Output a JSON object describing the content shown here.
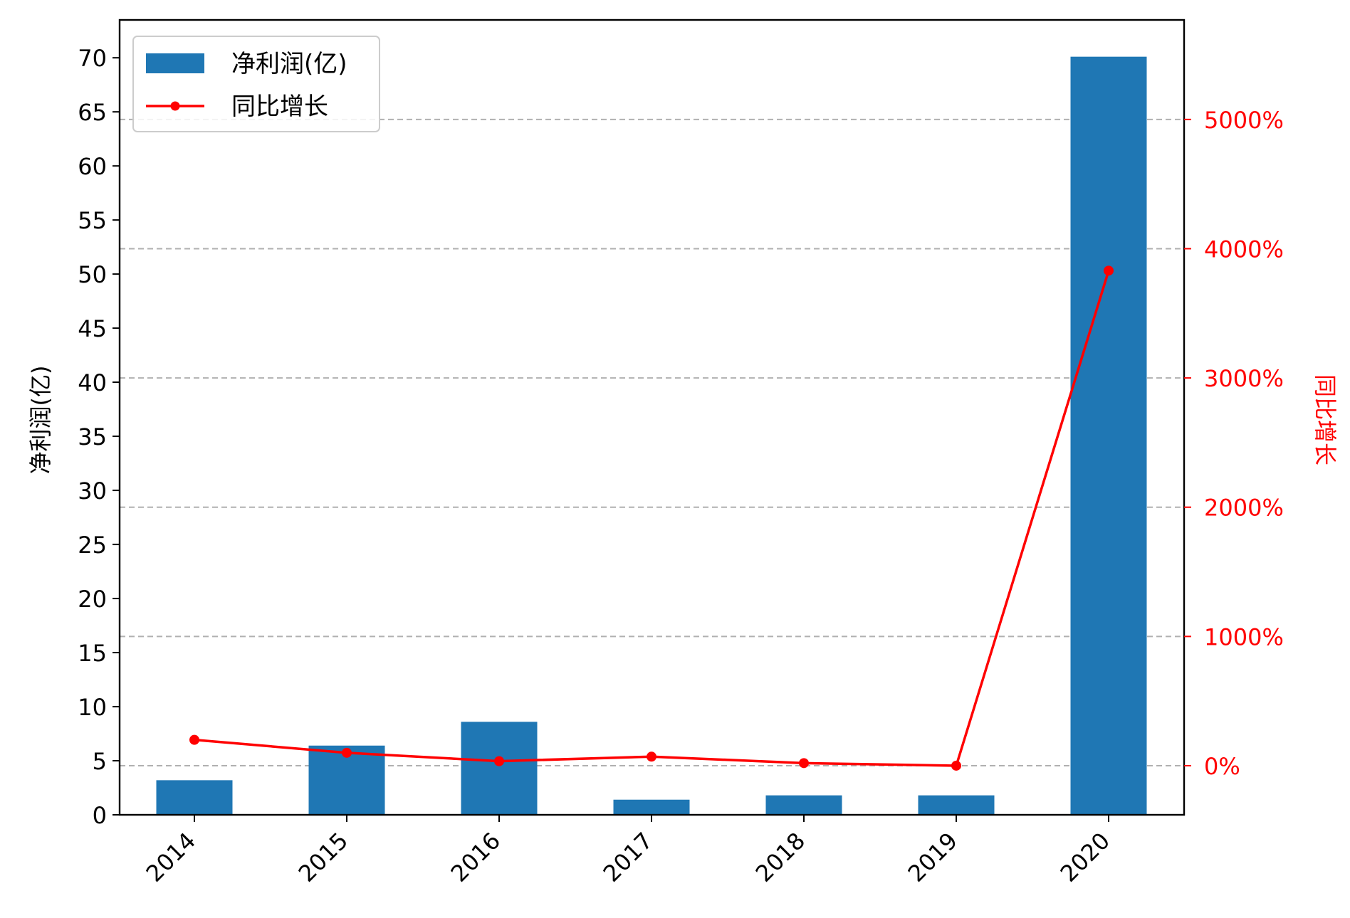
{
  "chart_data": {
    "type": "bar",
    "categories": [
      "2014",
      "2015",
      "2016",
      "2017",
      "2018",
      "2019",
      "2020"
    ],
    "series": [
      {
        "name": "净利润(亿)",
        "type": "bar",
        "axis": "left",
        "color": "#1f77b4",
        "values": [
          3.2,
          6.4,
          8.6,
          1.4,
          1.8,
          1.8,
          70.1
        ]
      },
      {
        "name": "同比增长",
        "type": "line",
        "axis": "right",
        "color": "#ff0000",
        "unit": "%",
        "values": [
          200,
          100,
          35,
          70,
          20,
          0,
          3830
        ]
      }
    ],
    "ylabel_left": "净利润(亿)",
    "ylabel_right": "同比增长",
    "ylim_left": [
      0,
      73.5
    ],
    "yticks_left": [
      "0",
      "5",
      "10",
      "15",
      "20",
      "25",
      "30",
      "35",
      "40",
      "45",
      "50",
      "55",
      "60",
      "65",
      "70"
    ],
    "ylim_right": [
      -380,
      5770
    ],
    "yticks_right": [
      "0%",
      "1000%",
      "2000%",
      "3000%",
      "4000%",
      "5000%"
    ],
    "grid": "dashed horizontal gridlines at right-axis ticks",
    "legend_position": "top-left",
    "colors": {
      "bar": "#1f77b4",
      "line": "#ff0000",
      "grid": "#b0b0b0"
    }
  }
}
